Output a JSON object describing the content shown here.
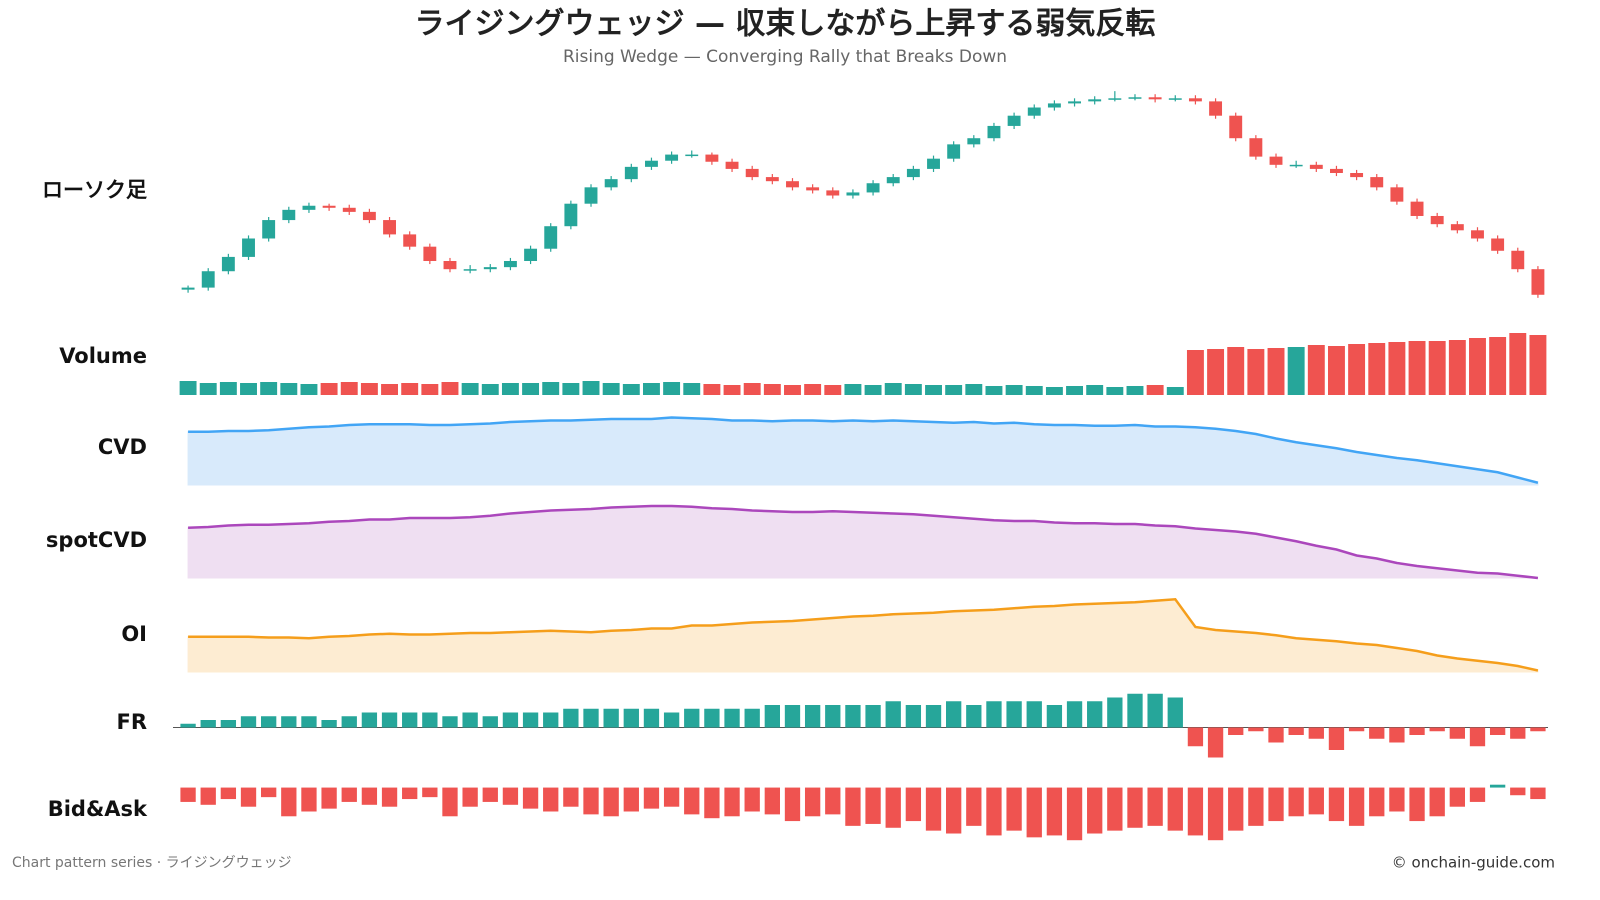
{
  "title": "ライジングウェッジ — 収束しながら上昇する弱気反転",
  "subtitle": "Rising Wedge — Converging Rally that Breaks Down",
  "footer_left": "Chart pattern series · ライジングウェッジ",
  "footer_right": "© onchain-guide.com",
  "chart_data": [
    {
      "type": "candlestick",
      "label": "ローソク足",
      "up_color": "#26a69a",
      "down_color": "#ef5350",
      "ylim": [
        95,
        310
      ],
      "open": [
        110,
        112,
        128,
        142,
        160,
        178,
        188,
        192,
        190,
        186,
        178,
        164,
        152,
        138,
        130,
        130,
        132,
        138,
        150,
        172,
        194,
        210,
        218,
        230,
        236,
        242,
        242,
        235,
        228,
        220,
        216,
        210,
        207,
        202,
        205,
        214,
        220,
        228,
        238,
        252,
        258,
        270,
        280,
        288,
        292,
        294,
        296,
        297,
        298,
        296,
        297,
        294,
        280,
        258,
        240,
        232,
        232,
        228,
        224,
        220,
        210,
        196,
        182,
        174,
        168,
        160,
        148,
        130
      ],
      "high": [
        114,
        131,
        145,
        163,
        181,
        191,
        195,
        194,
        193,
        189,
        181,
        167,
        155,
        141,
        134,
        135,
        141,
        153,
        175,
        197,
        213,
        221,
        233,
        239,
        245,
        246,
        244,
        238,
        231,
        223,
        219,
        213,
        210,
        208,
        217,
        223,
        231,
        241,
        255,
        261,
        273,
        283,
        291,
        295,
        297,
        299,
        304,
        301,
        301,
        300,
        300,
        297,
        283,
        261,
        243,
        236,
        235,
        231,
        227,
        223,
        213,
        199,
        185,
        177,
        171,
        163,
        151,
        133
      ],
      "low": [
        107,
        109,
        125,
        139,
        157,
        175,
        185,
        187,
        183,
        175,
        161,
        149,
        135,
        127,
        126,
        127,
        129,
        135,
        147,
        169,
        191,
        207,
        215,
        227,
        233,
        239,
        232,
        225,
        217,
        213,
        207,
        204,
        199,
        199,
        202,
        211,
        217,
        225,
        235,
        249,
        255,
        267,
        277,
        285,
        289,
        291,
        294,
        295,
        293,
        294,
        291,
        277,
        255,
        237,
        229,
        229,
        225,
        221,
        217,
        207,
        193,
        179,
        171,
        165,
        157,
        145,
        127,
        102
      ],
      "close": [
        112,
        128,
        142,
        160,
        178,
        188,
        192,
        190,
        186,
        178,
        164,
        152,
        138,
        130,
        130,
        132,
        138,
        150,
        172,
        194,
        210,
        218,
        230,
        236,
        242,
        242,
        235,
        228,
        220,
        216,
        210,
        207,
        202,
        205,
        214,
        220,
        228,
        238,
        252,
        258,
        270,
        280,
        288,
        292,
        294,
        296,
        297,
        298,
        296,
        297,
        294,
        280,
        258,
        240,
        232,
        232,
        228,
        224,
        220,
        210,
        196,
        182,
        174,
        168,
        160,
        148,
        130,
        105
      ]
    },
    {
      "type": "volume",
      "label": "Volume",
      "up_color": "#26a69a",
      "down_color": "#ef5350",
      "ylim": [
        0,
        70
      ],
      "values": [
        14,
        12,
        13,
        12,
        13,
        12,
        11,
        12,
        13,
        12,
        11,
        12,
        11,
        13,
        12,
        11,
        12,
        12,
        13,
        12,
        14,
        12,
        11,
        12,
        13,
        12,
        11,
        10,
        12,
        11,
        10,
        11,
        10,
        11,
        10,
        12,
        11,
        10,
        10,
        11,
        9,
        10,
        9,
        8,
        9,
        10,
        8,
        9,
        10,
        8,
        45,
        46,
        48,
        46,
        47,
        48,
        50,
        49,
        51,
        52,
        53,
        54,
        54,
        55,
        57,
        58,
        62,
        60
      ]
    },
    {
      "type": "area",
      "label": "CVD",
      "color": "#42a5f5",
      "fill": "#d8eafb",
      "ylim": [
        0,
        100
      ],
      "values": [
        71,
        71,
        72,
        72,
        73,
        75,
        77,
        78,
        80,
        81,
        81,
        81,
        80,
        80,
        81,
        82,
        84,
        85,
        86,
        86,
        87,
        88,
        88,
        88,
        90,
        89,
        88,
        86,
        86,
        85,
        86,
        86,
        85,
        86,
        85,
        86,
        85,
        84,
        83,
        84,
        82,
        83,
        81,
        80,
        80,
        79,
        79,
        80,
        78,
        78,
        77,
        75,
        72,
        68,
        62,
        57,
        53,
        49,
        44,
        40,
        36,
        33,
        29,
        25,
        21,
        17,
        10,
        3
      ]
    },
    {
      "type": "area",
      "label": "spotCVD",
      "color": "#ab47bc",
      "fill": "#efdff2",
      "ylim": [
        0,
        100
      ],
      "values": [
        67,
        68,
        70,
        71,
        71,
        72,
        73,
        75,
        76,
        78,
        78,
        80,
        80,
        80,
        81,
        83,
        86,
        88,
        90,
        91,
        92,
        94,
        95,
        96,
        96,
        95,
        93,
        92,
        90,
        89,
        88,
        88,
        89,
        88,
        87,
        86,
        85,
        83,
        81,
        79,
        77,
        76,
        76,
        74,
        73,
        73,
        72,
        72,
        70,
        69,
        66,
        64,
        62,
        59,
        54,
        49,
        43,
        38,
        30,
        26,
        20,
        16,
        13,
        10,
        7,
        6,
        3,
        0
      ]
    },
    {
      "type": "area",
      "label": "OI",
      "color": "#f59e1b",
      "fill": "#fdecd2",
      "ylim": [
        0,
        100
      ],
      "values": [
        47,
        47,
        47,
        47,
        46,
        46,
        45,
        47,
        48,
        50,
        51,
        50,
        50,
        51,
        52,
        52,
        53,
        54,
        55,
        54,
        53,
        55,
        56,
        58,
        58,
        62,
        62,
        64,
        66,
        67,
        68,
        70,
        72,
        74,
        75,
        77,
        78,
        79,
        81,
        82,
        83,
        85,
        87,
        88,
        90,
        91,
        92,
        93,
        95,
        97,
        60,
        56,
        54,
        52,
        49,
        45,
        43,
        41,
        38,
        36,
        32,
        28,
        22,
        18,
        15,
        12,
        8,
        2
      ]
    },
    {
      "type": "bar",
      "label": "FR",
      "pos_color": "#26a69a",
      "neg_color": "#ef5350",
      "ylim": [
        -10,
        10
      ],
      "values": [
        1,
        2,
        2,
        3,
        3,
        3,
        3,
        2,
        3,
        4,
        4,
        4,
        4,
        3,
        4,
        3,
        4,
        4,
        4,
        5,
        5,
        5,
        5,
        5,
        4,
        5,
        5,
        5,
        5,
        6,
        6,
        6,
        6,
        6,
        6,
        7,
        6,
        6,
        7,
        6,
        7,
        7,
        7,
        6,
        7,
        7,
        8,
        9,
        9,
        8,
        -5,
        -8,
        -2,
        -1,
        -4,
        -2,
        -3,
        -6,
        -1,
        -3,
        -4,
        -2,
        -1,
        -3,
        -5,
        -2,
        -3,
        -1
      ]
    },
    {
      "type": "bar",
      "label": "Bid&Ask",
      "pos_color": "#26a69a",
      "neg_color": "#ef5350",
      "ylim": [
        -60,
        10
      ],
      "values": [
        -15,
        -18,
        -12,
        -20,
        -10,
        -30,
        -25,
        -22,
        -15,
        -18,
        -20,
        -12,
        -10,
        -30,
        -20,
        -15,
        -18,
        -22,
        -25,
        -20,
        -28,
        -30,
        -25,
        -22,
        -20,
        -28,
        -32,
        -30,
        -25,
        -28,
        -35,
        -30,
        -28,
        -40,
        -38,
        -42,
        -35,
        -45,
        -48,
        -40,
        -50,
        -45,
        -52,
        -50,
        -55,
        -48,
        -45,
        -42,
        -40,
        -45,
        -50,
        -55,
        -45,
        -40,
        -35,
        -30,
        -28,
        -35,
        -40,
        -30,
        -25,
        -35,
        -30,
        -20,
        -15,
        3,
        -8,
        -12
      ]
    }
  ]
}
